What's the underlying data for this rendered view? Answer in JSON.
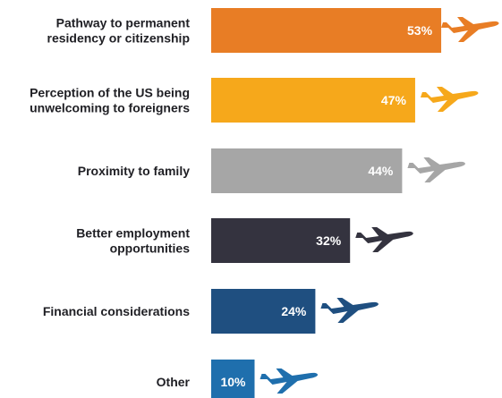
{
  "chart_data": {
    "type": "bar",
    "orientation": "horizontal",
    "categories": [
      [
        "Pathway to permanent",
        "residency or citizenship"
      ],
      [
        "Perception of the US being",
        "unwelcoming to foreigners"
      ],
      [
        "Proximity to family"
      ],
      [
        "Better employment",
        "opportunities"
      ],
      [
        "Financial considerations"
      ],
      [
        "Other"
      ]
    ],
    "values": [
      53,
      47,
      44,
      32,
      24,
      10
    ],
    "value_labels": [
      "53%",
      "47%",
      "44%",
      "32%",
      "24%",
      "10%"
    ],
    "unit": "%",
    "xlim": [
      0,
      100
    ],
    "colors": [
      "#e87d25",
      "#f6a81b",
      "#a6a6a6",
      "#34333f",
      "#1f4f80",
      "#1f6fad"
    ],
    "icon": "airplane-icon",
    "grid": false,
    "title": "",
    "xlabel": "",
    "ylabel": ""
  }
}
